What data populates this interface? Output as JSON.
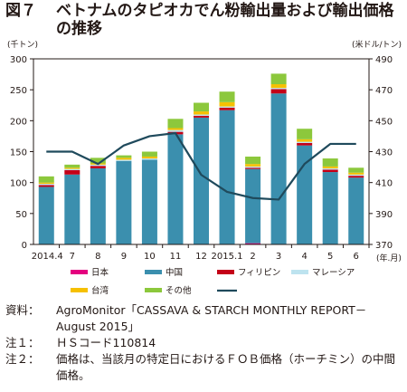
{
  "figure": {
    "label": "図７",
    "title": "ベトナムのタピオカでん粉輸出量および輸出価格の推移"
  },
  "notes": [
    {
      "key": "資料：",
      "text": "AgroMonitor「CASSAVA & STARCH MONTHLY REPORT－August 2015」"
    },
    {
      "key": "注１：",
      "text": "ＨＳコード110814"
    },
    {
      "key": "注２：",
      "text": "価格は、当該月の特定日におけるＦＯＢ価格（ホーチミン）の中間価格。"
    }
  ],
  "colors": {
    "日本": "#e4007f",
    "中国": "#3b8fae",
    "フィリピン": "#c40018",
    "マレーシア": "#bde3ef",
    "台湾": "#f6c000",
    "その他": "#8cc83c",
    "price_line": "#1f4a5c"
  },
  "chart_data": {
    "type": "bar",
    "stacked": true,
    "categories": [
      "2014.4",
      "7",
      "8",
      "9",
      "10",
      "11",
      "12",
      "2015.1",
      "2",
      "3",
      "4",
      "5",
      "6"
    ],
    "x_axis_unit": "(年.月)",
    "y_left": {
      "unit": "(千トン)",
      "ylim": [
        0,
        300
      ],
      "ticks": [
        0,
        50,
        100,
        150,
        200,
        250,
        300
      ]
    },
    "y_right": {
      "unit": "(米ドル/トン)",
      "ylim": [
        370,
        490
      ],
      "ticks": [
        370,
        390,
        410,
        430,
        450,
        470,
        490
      ]
    },
    "series": [
      {
        "name": "日本",
        "axis": "left",
        "values": [
          0,
          0,
          0,
          0,
          0,
          0,
          0,
          0,
          2,
          0,
          0,
          0,
          0
        ]
      },
      {
        "name": "中国",
        "axis": "left",
        "values": [
          93,
          113,
          123,
          135,
          137,
          178,
          205,
          217,
          120,
          244,
          160,
          117,
          108
        ]
      },
      {
        "name": "フィリピン",
        "axis": "left",
        "values": [
          3,
          7,
          4,
          0,
          0,
          4,
          3,
          4,
          2,
          7,
          4,
          4,
          3
        ]
      },
      {
        "name": "マレーシア",
        "axis": "left",
        "values": [
          2,
          2,
          2,
          2,
          2,
          3,
          2,
          2,
          2,
          2,
          2,
          2,
          2
        ]
      },
      {
        "name": "台湾",
        "axis": "left",
        "values": [
          2,
          2,
          2,
          3,
          3,
          3,
          5,
          7,
          4,
          6,
          4,
          3,
          3
        ]
      },
      {
        "name": "その他",
        "axis": "left",
        "values": [
          10,
          5,
          9,
          4,
          8,
          15,
          14,
          17,
          12,
          17,
          17,
          13,
          8
        ]
      },
      {
        "name": "",
        "type": "line",
        "axis": "right",
        "values": [
          430,
          430,
          422,
          434,
          440,
          442,
          415,
          404,
          400,
          399,
          422,
          435,
          435
        ]
      }
    ]
  }
}
